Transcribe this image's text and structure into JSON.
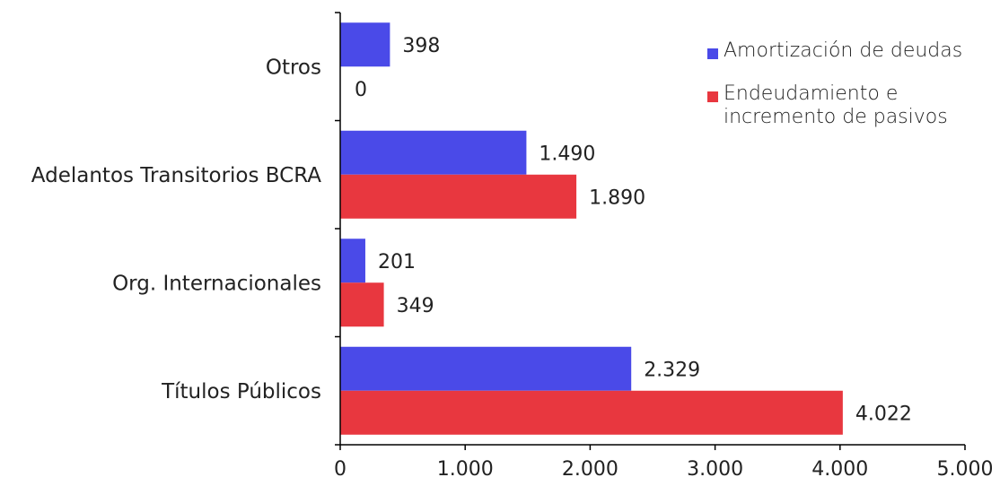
{
  "chart_data": {
    "type": "bar",
    "orientation": "horizontal",
    "categories": [
      "Otros",
      "Adelantos Transitorios BCRA",
      "Org. Internacionales",
      "Títulos Públicos"
    ],
    "series": [
      {
        "name": "Amortización de deudas",
        "color": "#4a4ae8",
        "values": [
          398,
          1490,
          201,
          2329
        ],
        "labels": [
          "398",
          "1.490",
          "201",
          "2.329"
        ]
      },
      {
        "name": "Endeudamiento e incremento de pasivos",
        "color": "#e8373f",
        "values": [
          0,
          1890,
          349,
          4022
        ],
        "labels": [
          "0",
          "1.890",
          "349",
          "4.022"
        ]
      }
    ],
    "xlim": [
      0,
      5000
    ],
    "x_ticks": [
      0,
      1000,
      2000,
      3000,
      4000,
      5000
    ],
    "x_tick_labels": [
      "0",
      "1.000",
      "2.000",
      "3.000",
      "4.000",
      "5.000"
    ],
    "legend": {
      "position": "top-right",
      "items": [
        {
          "label": "Amortización de deudas",
          "color": "#4a4ae8"
        },
        {
          "label_lines": [
            "Endeudamiento e",
            "incremento de pasivos"
          ],
          "color": "#e8373f"
        }
      ]
    },
    "grid": false
  }
}
